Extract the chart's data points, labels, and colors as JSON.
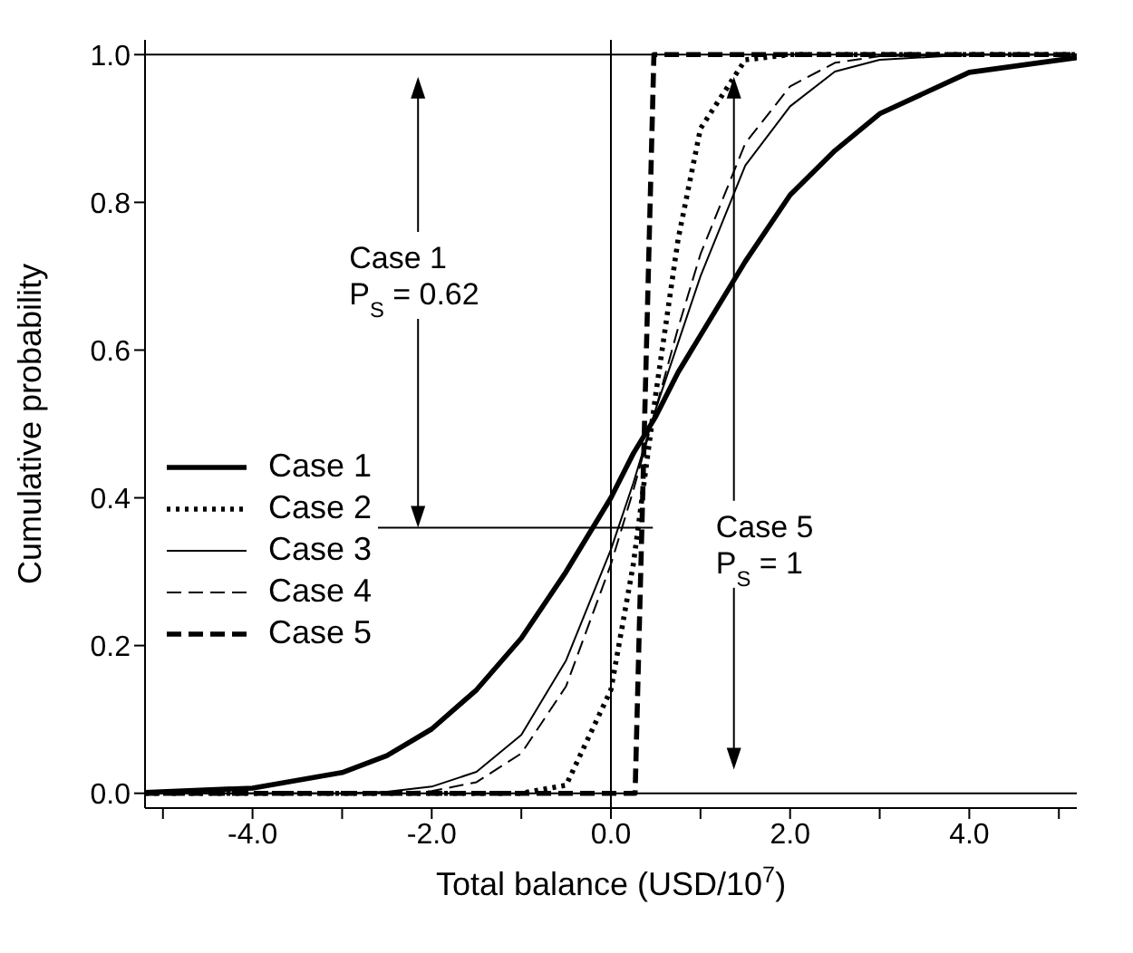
{
  "chart_data": {
    "type": "line",
    "xlabel": "Total balance (USD/10$^{7}$)",
    "ylabel": "Cumulative probability",
    "x": [
      -5.2,
      -4,
      -3,
      -2.5,
      -2,
      -1.5,
      -1,
      -0.5,
      0,
      0.25,
      0.5,
      0.75,
      1,
      1.5,
      2,
      2.5,
      3,
      4,
      5.2
    ],
    "series": [
      {
        "name": "Case 1",
        "color": "#000000",
        "line_style": "solid",
        "values": [
          0.001,
          0.007,
          0.028,
          0.051,
          0.087,
          0.14,
          0.21,
          0.3,
          0.4,
          0.46,
          0.51,
          0.57,
          0.62,
          0.72,
          0.81,
          0.87,
          0.92,
          0.976,
          0.996
        ]
      },
      {
        "name": "Case 2",
        "color": "#000000",
        "line_style": "dotted",
        "values": [
          0,
          0,
          0,
          0,
          0,
          0,
          0,
          0.011,
          0.14,
          0.31,
          0.54,
          0.75,
          0.9,
          0.993,
          1,
          1,
          1,
          1,
          1
        ]
      },
      {
        "name": "Case 3",
        "color": "#000000",
        "line_style": "solid",
        "values": [
          0,
          0,
          0,
          0.002,
          0.009,
          0.029,
          0.079,
          0.18,
          0.33,
          0.42,
          0.52,
          0.61,
          0.7,
          0.85,
          0.93,
          0.977,
          0.993,
          1,
          1
        ]
      },
      {
        "name": "Case 4",
        "color": "#000000",
        "line_style": "dashed",
        "values": [
          0,
          0,
          0,
          0.001,
          0.003,
          0.015,
          0.054,
          0.145,
          0.31,
          0.41,
          0.52,
          0.63,
          0.73,
          0.88,
          0.957,
          0.989,
          0.998,
          1,
          1
        ]
      },
      {
        "name": "Case 5",
        "color": "#000000",
        "line_style": "dashed",
        "x": [
          -5.2,
          0.27,
          0.48,
          5.2
        ],
        "values": [
          0,
          0,
          1,
          1
        ]
      }
    ],
    "xlim": [
      -5.2,
      5.2
    ],
    "xticks": [
      {
        "value": -5,
        "label": null
      },
      {
        "value": -4,
        "label": "-4.0"
      },
      {
        "value": -3,
        "label": null
      },
      {
        "value": -2,
        "label": "-2.0"
      },
      {
        "value": -1,
        "label": null
      },
      {
        "value": 0,
        "label": "0.0"
      },
      {
        "value": 1,
        "label": null
      },
      {
        "value": 2,
        "label": "2.0"
      },
      {
        "value": 3,
        "label": null
      },
      {
        "value": 4,
        "label": "4.0"
      },
      {
        "value": 5,
        "label": null
      }
    ],
    "ylim": [
      -0.02,
      1.02
    ],
    "yticks": [
      {
        "value": 0,
        "label": "0.0"
      },
      {
        "value": 0.2,
        "label": "0.2"
      },
      {
        "value": 0.4,
        "label": "0.4"
      },
      {
        "value": 0.6,
        "label": "0.6"
      },
      {
        "value": 0.8,
        "label": "0.8"
      },
      {
        "value": 1,
        "label": "1.0"
      }
    ],
    "ref_lines": [
      {
        "axis": "x",
        "value": 0,
        "color": "#000000"
      },
      {
        "axis": "y",
        "value": 1,
        "color": "#000000"
      },
      {
        "axis": "y",
        "value": 0,
        "color": "#000000"
      }
    ],
    "annotations": [
      "Case 1\nP$_{S}$ = 0.62",
      "Case 5\nP$_{S}$ = 1"
    ],
    "legend": "bottom left",
    "grid": false,
    "marker": "none"
  }
}
